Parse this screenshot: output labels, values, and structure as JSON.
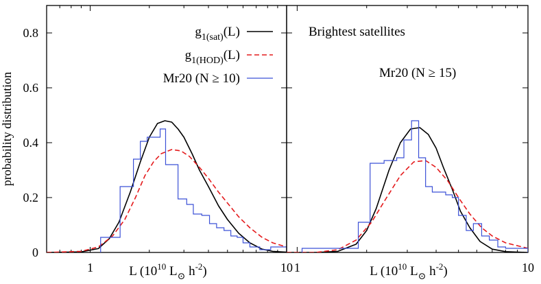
{
  "chart_data": [
    {
      "type": "line",
      "panel": "left",
      "x_scale": "log",
      "xlim": [
        0.6,
        10
      ],
      "ylim": [
        0,
        0.9
      ],
      "xlabel_main": "L (10",
      "xlabel_exp": "10",
      "xlabel_lsub": " L",
      "xlabel_sun": "⊙",
      "xlabel_h": " h",
      "xlabel_hexp": "-2",
      "xlabel_close": ")",
      "xticks": [
        {
          "value": 1,
          "label": "1"
        },
        {
          "value": 10,
          "label": "10"
        }
      ],
      "yticks": [
        {
          "value": 0,
          "label": "0"
        },
        {
          "value": 0.2,
          "label": "0.2"
        },
        {
          "value": 0.4,
          "label": "0.4"
        },
        {
          "value": 0.6,
          "label": "0.6"
        },
        {
          "value": 0.8,
          "label": "0.8"
        }
      ],
      "ylabel": "probability distribution",
      "legend": {
        "placement": "top-right",
        "entries": [
          {
            "label_main": "g",
            "label_sub": "1(sat)",
            "label_tail": "(L)",
            "style": "solid",
            "color": "#000000"
          },
          {
            "label_main": "g",
            "label_sub": "1(HOD)",
            "label_tail": "(L)",
            "style": "dashed",
            "color": "#e41a1c"
          },
          {
            "label_main": "Mr20 (N ≥ 10)",
            "label_sub": "",
            "label_tail": "",
            "style": "histogram",
            "color": "#3b50d6"
          }
        ]
      },
      "series": [
        {
          "name": "g1(sat)(L)",
          "kind": "curve",
          "color": "#000000",
          "dash": "none",
          "x": [
            0.6,
            0.9,
            1.1,
            1.25,
            1.4,
            1.6,
            1.8,
            2.0,
            2.2,
            2.4,
            2.6,
            2.8,
            3.0,
            3.3,
            3.6,
            4.0,
            4.5,
            5.0,
            5.7,
            6.5,
            7.5,
            8.5,
            10.0
          ],
          "y": [
            0.0,
            0.002,
            0.014,
            0.05,
            0.11,
            0.22,
            0.33,
            0.42,
            0.47,
            0.48,
            0.475,
            0.45,
            0.42,
            0.36,
            0.3,
            0.24,
            0.17,
            0.12,
            0.07,
            0.035,
            0.012,
            0.004,
            0.001
          ]
        },
        {
          "name": "g1(HOD)(L)",
          "kind": "curve",
          "color": "#e41a1c",
          "dash": "7,4",
          "x": [
            0.6,
            0.9,
            1.1,
            1.3,
            1.5,
            1.7,
            1.9,
            2.1,
            2.3,
            2.6,
            2.9,
            3.2,
            3.6,
            4.0,
            4.5,
            5.0,
            5.7,
            6.5,
            7.5,
            8.5,
            10.0
          ],
          "y": [
            0.0,
            0.004,
            0.02,
            0.06,
            0.12,
            0.2,
            0.28,
            0.33,
            0.36,
            0.375,
            0.37,
            0.35,
            0.31,
            0.27,
            0.22,
            0.18,
            0.13,
            0.09,
            0.055,
            0.035,
            0.02
          ]
        },
        {
          "name": "Mr20 (N ≥ 10)",
          "kind": "histogram",
          "color": "#3b50d6",
          "edges": [
            1.13,
            1.42,
            1.66,
            1.8,
            1.95,
            2.27,
            2.42,
            2.8,
            3.1,
            3.35,
            3.7,
            4.05,
            4.4,
            4.8,
            5.2,
            5.6,
            6.0,
            6.5,
            7.3,
            8.3,
            10.0
          ],
          "heights": [
            0.055,
            0.24,
            0.34,
            0.405,
            0.42,
            0.45,
            0.32,
            0.195,
            0.175,
            0.14,
            0.135,
            0.105,
            0.09,
            0.08,
            0.06,
            0.055,
            0.035,
            0.02,
            0.01,
            0.02
          ]
        }
      ]
    },
    {
      "type": "line",
      "panel": "right",
      "x_scale": "log",
      "xlim": [
        0.9,
        10
      ],
      "ylim": [
        0,
        0.9
      ],
      "xlabel_main": "L (10",
      "xlabel_exp": "10",
      "xlabel_lsub": " L",
      "xlabel_sun": "⊙",
      "xlabel_h": " h",
      "xlabel_hexp": "-2",
      "xlabel_close": ")",
      "xticks": [
        {
          "value": 1,
          "label": "1"
        },
        {
          "value": 10,
          "label": "10"
        }
      ],
      "annotations": [
        "Brightest satellites",
        "Mr20 (N ≥ 15)"
      ],
      "series": [
        {
          "name": "g1(sat)(L)",
          "kind": "curve",
          "color": "#000000",
          "dash": "none",
          "x": [
            0.9,
            1.2,
            1.5,
            1.8,
            2.0,
            2.2,
            2.5,
            2.8,
            3.1,
            3.4,
            3.7,
            4.0,
            4.3,
            4.7,
            5.1,
            5.6,
            6.2,
            7.0,
            8.0,
            10.0
          ],
          "y": [
            0.0,
            0.0,
            0.004,
            0.03,
            0.08,
            0.16,
            0.3,
            0.4,
            0.45,
            0.455,
            0.43,
            0.38,
            0.31,
            0.23,
            0.15,
            0.09,
            0.04,
            0.012,
            0.003,
            0.0
          ]
        },
        {
          "name": "g1(HOD)(L)",
          "kind": "curve",
          "color": "#e41a1c",
          "dash": "7,4",
          "x": [
            0.9,
            1.2,
            1.5,
            1.8,
            2.1,
            2.4,
            2.8,
            3.2,
            3.6,
            4.0,
            4.5,
            5.0,
            5.6,
            6.3,
            7.0,
            8.0,
            10.0
          ],
          "y": [
            0.0,
            0.0,
            0.01,
            0.045,
            0.11,
            0.19,
            0.28,
            0.33,
            0.335,
            0.31,
            0.26,
            0.2,
            0.14,
            0.09,
            0.06,
            0.035,
            0.015
          ]
        },
        {
          "name": "Mr20 (N ≥ 15)",
          "kind": "histogram",
          "color": "#3b50d6",
          "edges": [
            1.05,
            1.84,
            2.07,
            2.38,
            2.7,
            2.9,
            3.13,
            3.36,
            3.6,
            3.85,
            4.1,
            4.4,
            4.7,
            5.0,
            5.4,
            5.8,
            6.3,
            6.8,
            7.4,
            8.0,
            9.0,
            10.0
          ],
          "heights": [
            0.015,
            0.11,
            0.325,
            0.335,
            0.345,
            0.41,
            0.48,
            0.345,
            0.24,
            0.22,
            0.22,
            0.21,
            0.2,
            0.135,
            0.08,
            0.105,
            0.06,
            0.045,
            0.02,
            0.015,
            0.015
          ]
        }
      ]
    }
  ]
}
